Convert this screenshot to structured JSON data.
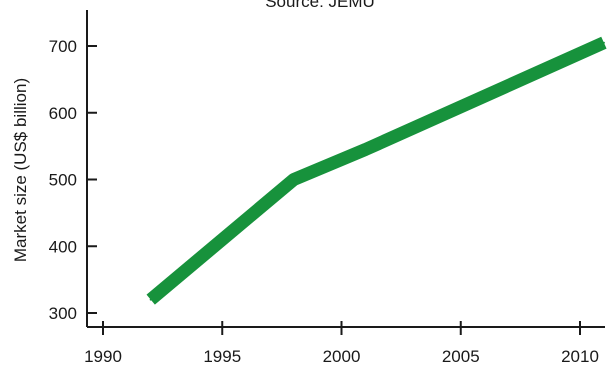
{
  "chart_data": {
    "type": "line",
    "title": "",
    "source": "Source: JEMU",
    "xlabel": "",
    "ylabel": "Market size (US$ billion)",
    "xlim": [
      1990,
      2010
    ],
    "ylim": [
      300,
      700
    ],
    "x_ticks": [
      1990,
      1995,
      2000,
      2005,
      2010
    ],
    "y_ticks": [
      300,
      400,
      500,
      600,
      700
    ],
    "grid": false,
    "legend": "none",
    "series_color": "#17923c",
    "series": [
      {
        "x": [
          1992,
          1998,
          2001,
          2011
        ],
        "y": [
          320,
          500,
          545,
          705
        ]
      }
    ]
  }
}
